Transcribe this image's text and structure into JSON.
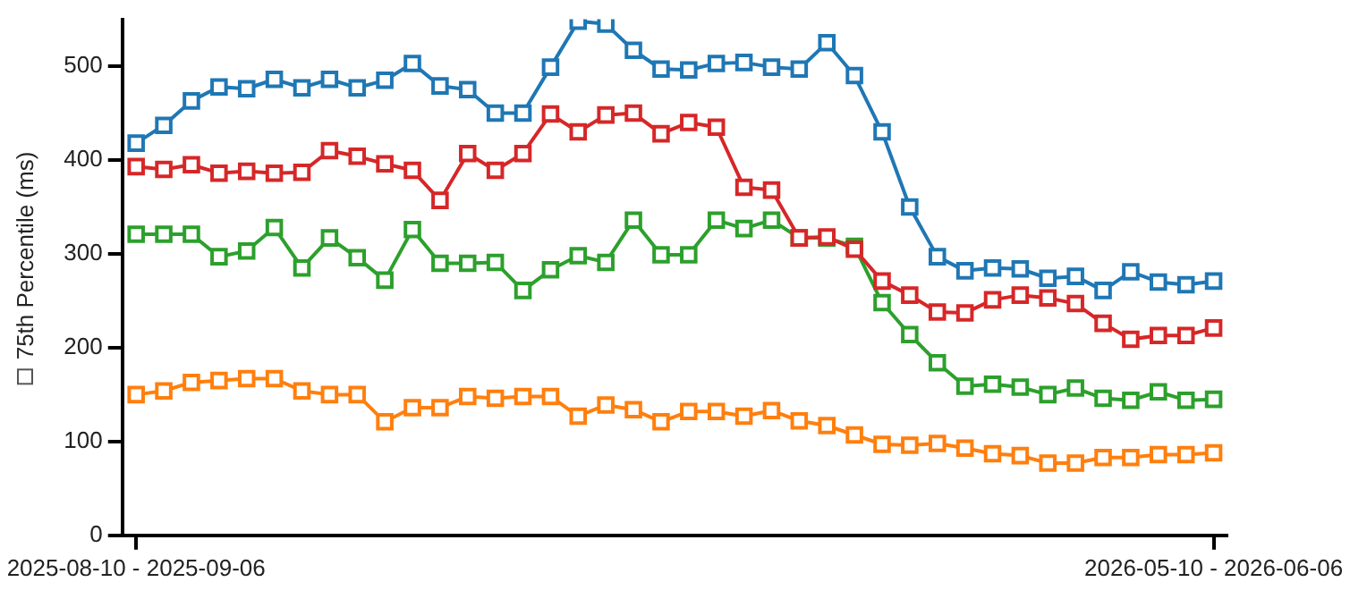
{
  "chart_data": {
    "type": "line",
    "ylabel": "75th Percentile (ms)",
    "categories": [
      "2025-08-10 - 2025-09-06",
      null,
      null,
      null,
      null,
      null,
      null,
      null,
      null,
      null,
      null,
      null,
      null,
      null,
      null,
      null,
      null,
      null,
      null,
      null,
      null,
      null,
      null,
      null,
      null,
      null,
      null,
      null,
      null,
      null,
      null,
      null,
      null,
      null,
      null,
      null,
      null,
      null,
      null,
      "2026-05-10 - 2026-06-06"
    ],
    "series": [
      {
        "color": "#1f77b4",
        "values": [
          418,
          437,
          463,
          478,
          476,
          486,
          477,
          486,
          477,
          485,
          503,
          479,
          475,
          450,
          450,
          499,
          548,
          545,
          517,
          497,
          496,
          503,
          504,
          499,
          497,
          525,
          490,
          430,
          350,
          297,
          282,
          285,
          284,
          274,
          276,
          261,
          281,
          270,
          267,
          271
        ]
      },
      {
        "color": "#d62728",
        "values": [
          393,
          390,
          395,
          386,
          388,
          386,
          387,
          410,
          404,
          396,
          389,
          357,
          407,
          389,
          407,
          449,
          430,
          448,
          450,
          428,
          440,
          435,
          371,
          368,
          317,
          318,
          305,
          271,
          256,
          238,
          237,
          251,
          256,
          253,
          247,
          226,
          209,
          213,
          213,
          221
        ]
      },
      {
        "color": "#2ca02c",
        "values": [
          321,
          321,
          321,
          297,
          303,
          328,
          285,
          317,
          296,
          272,
          326,
          290,
          290,
          291,
          261,
          283,
          298,
          291,
          336,
          299,
          299,
          336,
          327,
          336,
          317,
          317,
          308,
          248,
          214,
          184,
          159,
          161,
          158,
          150,
          157,
          146,
          144,
          153,
          144,
          145
        ]
      },
      {
        "color": "#ff7f0e",
        "values": [
          150,
          154,
          163,
          165,
          167,
          167,
          154,
          150,
          150,
          121,
          136,
          136,
          148,
          146,
          148,
          148,
          127,
          139,
          134,
          121,
          132,
          132,
          127,
          133,
          122,
          117,
          107,
          97,
          96,
          98,
          93,
          87,
          85,
          77,
          77,
          83,
          83,
          86,
          86,
          88
        ]
      }
    ],
    "ylim": [
      0,
      550
    ],
    "yticks": [
      0,
      100,
      200,
      300,
      400,
      500
    ],
    "grid": false,
    "legend": false,
    "marker": "square",
    "line_style": "solid"
  }
}
